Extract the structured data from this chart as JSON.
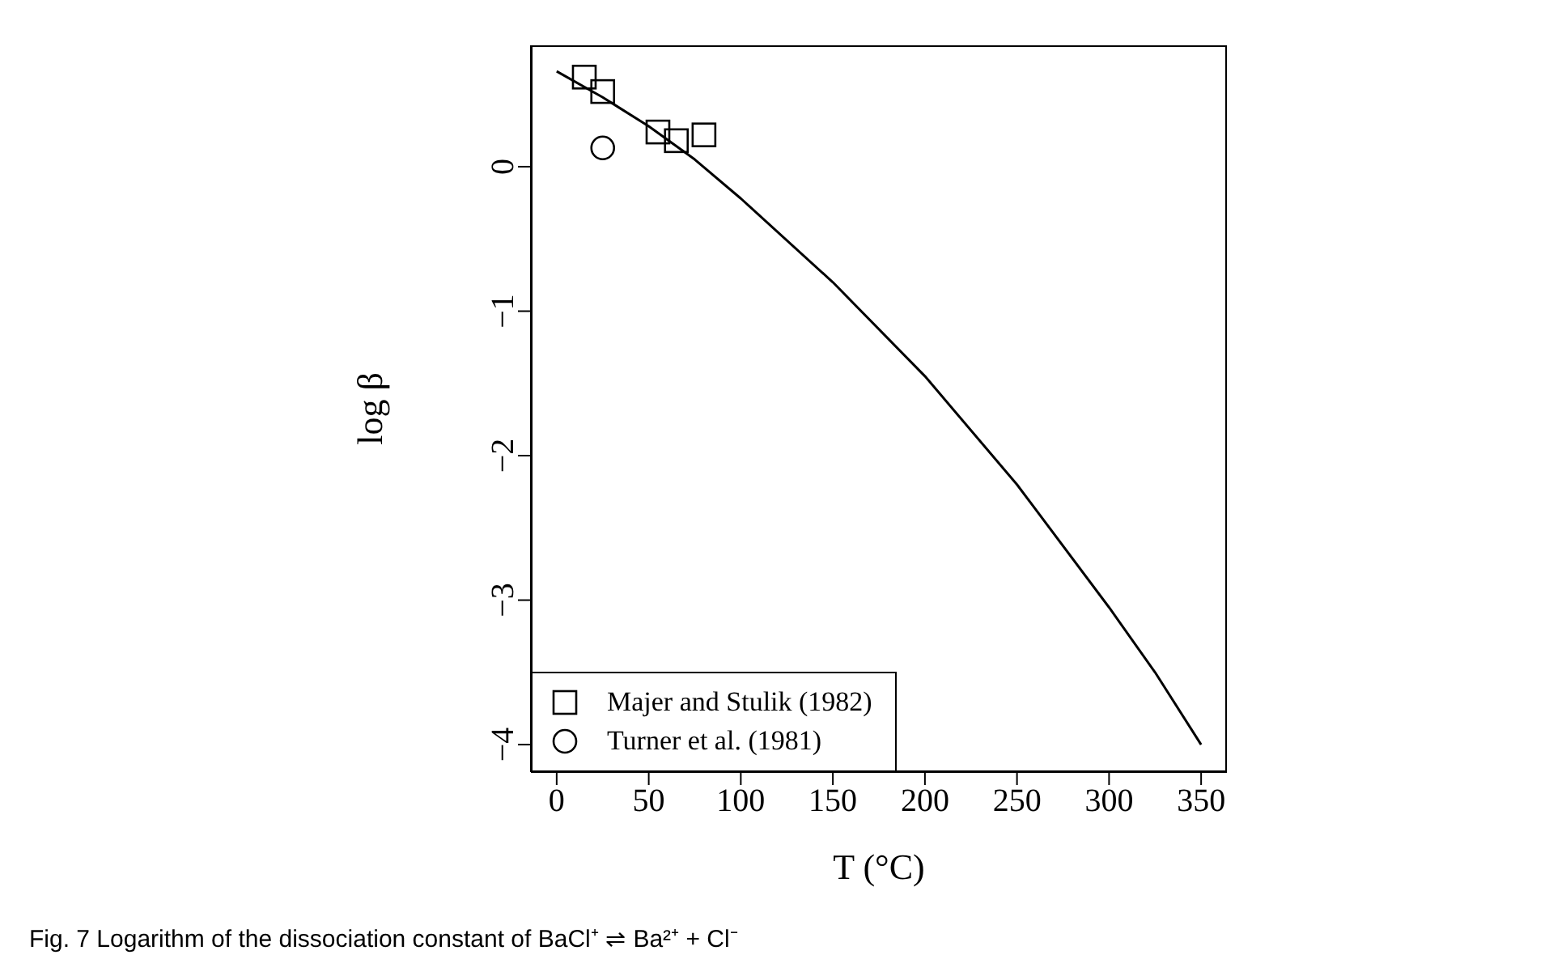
{
  "chart_data": {
    "type": "scatter",
    "xlabel": "T (°C)",
    "ylabel": "log β",
    "annotations": [
      "Fig. 7 Logarithm of the dissociation constant of BaCl⁺ ⇌ Ba²⁺ + Cl⁻"
    ],
    "xlim": [
      -14,
      364
    ],
    "xticks": [
      0,
      50,
      100,
      150,
      200,
      250,
      300,
      350
    ],
    "ylim": [
      -4.19,
      0.84
    ],
    "yticks": [
      0,
      -1,
      -2,
      -3,
      -4
    ],
    "grid": false,
    "legend": "bottom left",
    "series": [
      {
        "name": "Majer and Stulik (1982)",
        "marker": "square",
        "color": "#000000",
        "x": [
          15,
          25,
          55,
          65,
          80
        ],
        "values": [
          0.62,
          0.52,
          0.24,
          0.18,
          0.22
        ]
      },
      {
        "name": "Turner et al. (1981)",
        "marker": "circle",
        "color": "#000000",
        "x": [
          25
        ],
        "values": [
          0.13
        ]
      },
      {
        "type": "line",
        "marker": "none",
        "color": "#000000",
        "x": [
          0,
          25,
          50,
          75,
          100,
          150,
          200,
          250,
          300,
          325,
          350
        ],
        "values": [
          0.66,
          0.48,
          0.28,
          0.05,
          -0.22,
          -0.8,
          -1.45,
          -2.2,
          -3.05,
          -3.5,
          -4.0
        ]
      }
    ]
  }
}
